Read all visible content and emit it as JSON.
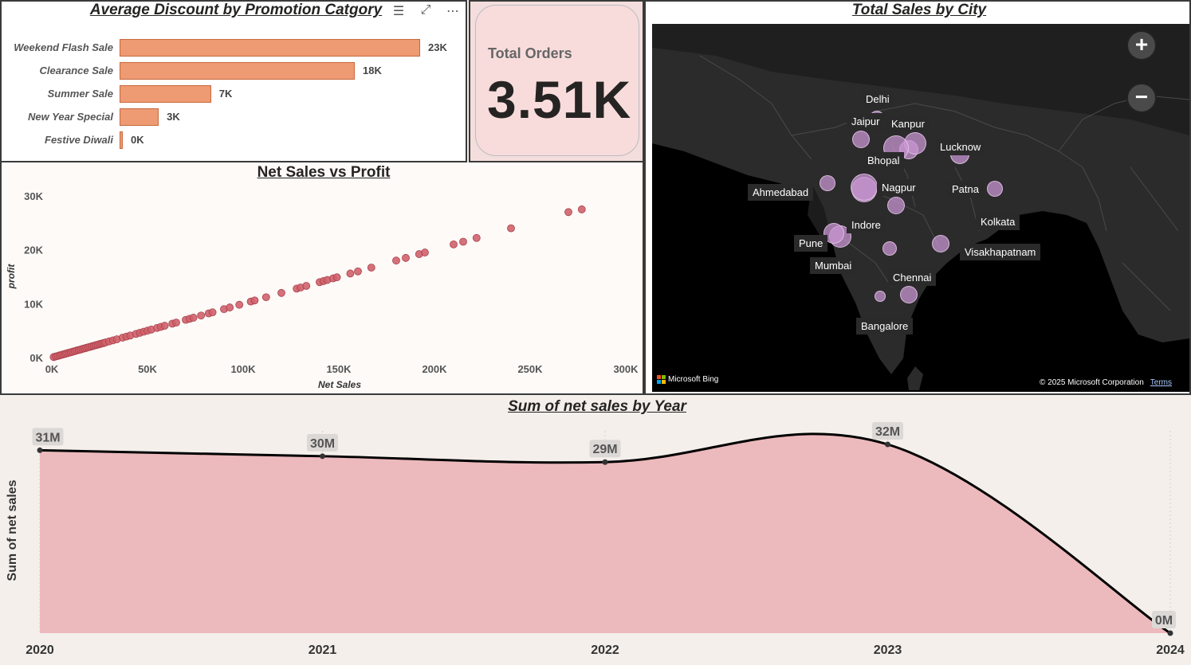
{
  "discount_chart": {
    "title": "Average Discount by Promotion Catgory",
    "chart_data": {
      "type": "bar",
      "orientation": "horizontal",
      "title": "Average Discount by Promotion Catgory",
      "categories": [
        "Weekend Flash Sale",
        "Clearance Sale",
        "Summer Sale",
        "New Year Special",
        "Festive Diwali"
      ],
      "values": [
        23000,
        18000,
        7000,
        3000,
        0
      ],
      "labels": [
        "23K",
        "18K",
        "7K",
        "3K",
        "0K"
      ],
      "bar_color": "#ee9a72",
      "xlim": [
        0,
        23000
      ]
    }
  },
  "kpi": {
    "label": "Total Orders",
    "value": "3.51K"
  },
  "scatter_chart": {
    "title": "Net Sales vs Profit",
    "chart_data": {
      "type": "scatter",
      "title": "Net Sales vs Profit",
      "xlabel": "Net Sales",
      "ylabel": "profit",
      "xlim": [
        0,
        300000
      ],
      "ylim": [
        0,
        30000
      ],
      "x_ticks": [
        "0K",
        "50K",
        "100K",
        "150K",
        "200K",
        "250K",
        "300K"
      ],
      "y_ticks": [
        "0K",
        "10K",
        "20K",
        "30K"
      ],
      "point_color": "#d0626c",
      "points": [
        [
          1000,
          100
        ],
        [
          2000,
          200
        ],
        [
          3000,
          300
        ],
        [
          4000,
          400
        ],
        [
          5000,
          500
        ],
        [
          6000,
          600
        ],
        [
          7000,
          700
        ],
        [
          8000,
          800
        ],
        [
          9000,
          900
        ],
        [
          10000,
          1000
        ],
        [
          11000,
          1100
        ],
        [
          12000,
          1200
        ],
        [
          13000,
          1300
        ],
        [
          14000,
          1400
        ],
        [
          15000,
          1500
        ],
        [
          16000,
          1600
        ],
        [
          17000,
          1700
        ],
        [
          18000,
          1800
        ],
        [
          19000,
          1900
        ],
        [
          20000,
          2000
        ],
        [
          21000,
          2100
        ],
        [
          22000,
          2200
        ],
        [
          23000,
          2300
        ],
        [
          24000,
          2400
        ],
        [
          25000,
          2500
        ],
        [
          26000,
          2600
        ],
        [
          27000,
          2700
        ],
        [
          28000,
          2800
        ],
        [
          30000,
          3000
        ],
        [
          32000,
          3200
        ],
        [
          34000,
          3400
        ],
        [
          37000,
          3700
        ],
        [
          39000,
          3900
        ],
        [
          41000,
          4100
        ],
        [
          44000,
          4400
        ],
        [
          46000,
          4600
        ],
        [
          48000,
          4800
        ],
        [
          50000,
          5000
        ],
        [
          52000,
          5200
        ],
        [
          55000,
          5500
        ],
        [
          57000,
          5700
        ],
        [
          59000,
          5900
        ],
        [
          63000,
          6300
        ],
        [
          65000,
          6500
        ],
        [
          70000,
          7000
        ],
        [
          72000,
          7200
        ],
        [
          74000,
          7400
        ],
        [
          78000,
          7800
        ],
        [
          82000,
          8200
        ],
        [
          84000,
          8400
        ],
        [
          90000,
          9000
        ],
        [
          93000,
          9300
        ],
        [
          98000,
          9800
        ],
        [
          104000,
          10400
        ],
        [
          106000,
          10600
        ],
        [
          112000,
          11200
        ],
        [
          120000,
          12000
        ],
        [
          128000,
          12800
        ],
        [
          130000,
          13000
        ],
        [
          133000,
          13300
        ],
        [
          140000,
          14000
        ],
        [
          142000,
          14200
        ],
        [
          144000,
          14400
        ],
        [
          147000,
          14700
        ],
        [
          149000,
          14900
        ],
        [
          156000,
          15600
        ],
        [
          160000,
          16000
        ],
        [
          167000,
          16700
        ],
        [
          180000,
          18000
        ],
        [
          185000,
          18500
        ],
        [
          192000,
          19200
        ],
        [
          195000,
          19500
        ],
        [
          210000,
          21000
        ],
        [
          215000,
          21500
        ],
        [
          222000,
          22200
        ],
        [
          240000,
          24000
        ],
        [
          270000,
          27000
        ],
        [
          277000,
          27500
        ]
      ]
    }
  },
  "map": {
    "title": "Total Sales by City",
    "zoom_in": "+",
    "zoom_out": "−",
    "bing": "Microsoft Bing",
    "copyright": "© 2025 Microsoft Corporation",
    "terms": "Terms",
    "cities": [
      {
        "name": "Delhi"
      },
      {
        "name": "Jaipur"
      },
      {
        "name": "Kanpur"
      },
      {
        "name": "Lucknow"
      },
      {
        "name": "Bhopal"
      },
      {
        "name": "Ahmedabad"
      },
      {
        "name": "Nagpur"
      },
      {
        "name": "Patna"
      },
      {
        "name": "Indore"
      },
      {
        "name": "Kolkata"
      },
      {
        "name": "Pune"
      },
      {
        "name": "Visakhapatnam"
      },
      {
        "name": "Mumbai"
      },
      {
        "name": "Chennai"
      },
      {
        "name": "Bangalore"
      }
    ]
  },
  "area_chart": {
    "title": "Sum of net sales by Year",
    "chart_data": {
      "type": "area",
      "title": "Sum of net sales by Year",
      "xlabel": "",
      "ylabel": "Sum of net sales",
      "x": [
        "2020",
        "2021",
        "2022",
        "2023",
        "2024"
      ],
      "values": [
        31000000,
        30000000,
        29000000,
        32000000,
        0
      ],
      "labels": [
        "31M",
        "30M",
        "29M",
        "32M",
        "0M"
      ],
      "ylim": [
        0,
        32000000
      ],
      "fill_color": "#ecb9bc",
      "line_color": "#000000"
    }
  }
}
